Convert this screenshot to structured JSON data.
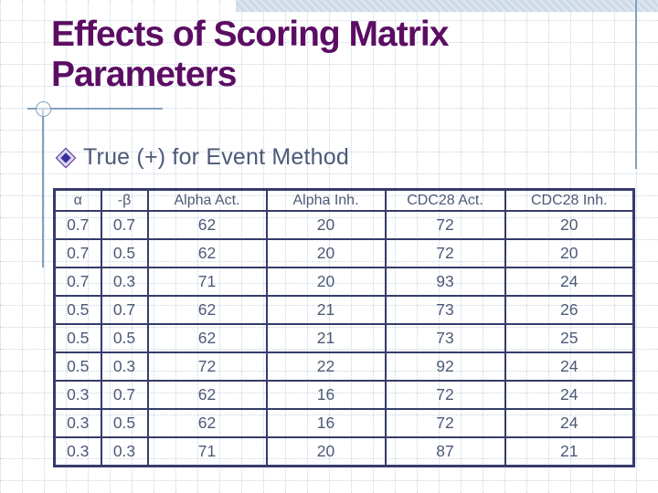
{
  "slide": {
    "title_line1": "Effects of Scoring Matrix",
    "title_line2": "Parameters",
    "bullet": "True (+) for Event Method"
  },
  "table": {
    "headers": [
      "α",
      "-β",
      "Alpha Act.",
      "Alpha Inh.",
      "CDC28 Act.",
      "CDC28 Inh."
    ],
    "rows": [
      [
        "0.7",
        "0.7",
        "62",
        "20",
        "72",
        "20"
      ],
      [
        "0.7",
        "0.5",
        "62",
        "20",
        "72",
        "20"
      ],
      [
        "0.7",
        "0.3",
        "71",
        "20",
        "93",
        "24"
      ],
      [
        "0.5",
        "0.7",
        "62",
        "21",
        "73",
        "26"
      ],
      [
        "0.5",
        "0.5",
        "62",
        "21",
        "73",
        "25"
      ],
      [
        "0.5",
        "0.3",
        "72",
        "22",
        "92",
        "24"
      ],
      [
        "0.3",
        "0.7",
        "62",
        "16",
        "72",
        "24"
      ],
      [
        "0.3",
        "0.5",
        "62",
        "16",
        "72",
        "24"
      ],
      [
        "0.3",
        "0.3",
        "71",
        "20",
        "87",
        "21"
      ]
    ]
  },
  "icons": {
    "bullet": "diamond-bullet-icon"
  },
  "colors": {
    "title_purple": "#5c0d63",
    "text_slate": "#4d5977",
    "table_border": "#353c6a",
    "grid_blue": "#c8d5e2",
    "band_blue": "#ccd9e6",
    "line_blue": "#84a0bd",
    "bullet_fill": "#3b2f9e"
  }
}
